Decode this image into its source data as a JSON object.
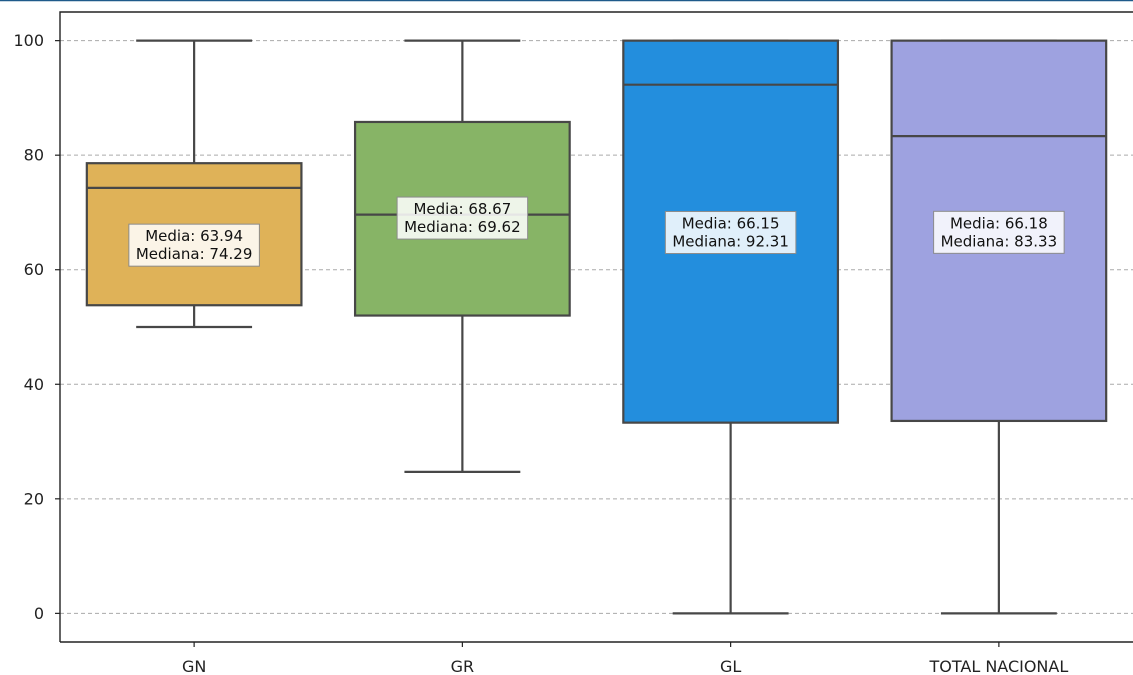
{
  "chart_data": {
    "type": "box",
    "title": "",
    "xlabel": "",
    "ylabel": "",
    "ylim": [
      -5,
      105
    ],
    "yticks": [
      0,
      20,
      40,
      60,
      80,
      100
    ],
    "grid": true,
    "categories": [
      "GN",
      "GR",
      "GL",
      "TOTAL NACIONAL"
    ],
    "boxes": [
      {
        "category": "GN",
        "min": 50,
        "q1": 53.8,
        "median": 74.29,
        "q3": 78.6,
        "max": 100,
        "mean": 63.94,
        "color": "#dfb258",
        "labels": [
          "Media: 63.94",
          "Mediana: 74.29"
        ]
      },
      {
        "category": "GR",
        "min": 24.7,
        "q1": 52,
        "median": 69.62,
        "q3": 85.8,
        "max": 100,
        "mean": 68.67,
        "color": "#87b466",
        "labels": [
          "Media: 68.67",
          "Mediana: 69.62"
        ]
      },
      {
        "category": "GL",
        "min": 0,
        "q1": 33.3,
        "median": 92.31,
        "q3": 100,
        "max": 100,
        "mean": 66.15,
        "color": "#238edd",
        "labels": [
          "Media: 66.15",
          "Mediana: 92.31"
        ]
      },
      {
        "category": "TOTAL NACIONAL",
        "min": 0,
        "q1": 33.6,
        "median": 83.33,
        "q3": 100,
        "max": 100,
        "mean": 66.18,
        "color": "#9ea2e0",
        "labels": [
          "Media: 66.18",
          "Mediana: 83.33"
        ]
      }
    ]
  }
}
